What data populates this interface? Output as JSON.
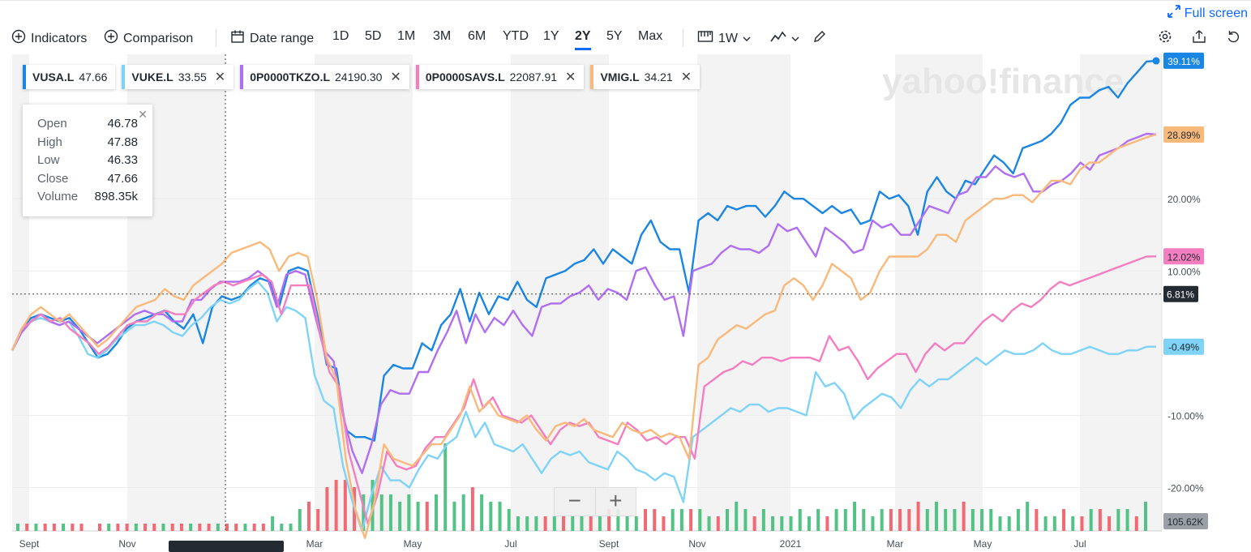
{
  "header": {
    "fullscreen_label": "Full screen"
  },
  "toolbar": {
    "indicators_label": "Indicators",
    "comparison_label": "Comparison",
    "date_range_label": "Date range",
    "ranges": [
      "1D",
      "5D",
      "1M",
      "3M",
      "6M",
      "YTD",
      "1Y",
      "2Y",
      "5Y",
      "Max"
    ],
    "selected_range": "2Y",
    "interval_label": "1W"
  },
  "legend": [
    {
      "symbol": "VUSA.L",
      "value": "47.66",
      "color": "#1a86e4",
      "closable": false
    },
    {
      "symbol": "VUKE.L",
      "value": "33.55",
      "color": "#7fd3f7",
      "closable": true
    },
    {
      "symbol": "0P0000TKZO.L",
      "value": "24190.30",
      "color": "#b06ef2",
      "closable": true
    },
    {
      "symbol": "0P0000SAVS.L",
      "value": "22087.91",
      "color": "#f47ec0",
      "closable": true
    },
    {
      "symbol": "VMIG.L",
      "value": "34.21",
      "color": "#f9b97a",
      "closable": true
    }
  ],
  "tooltip": {
    "rows": [
      {
        "label": "Open",
        "value": "46.78"
      },
      {
        "label": "High",
        "value": "47.88"
      },
      {
        "label": "Low",
        "value": "46.33"
      },
      {
        "label": "Close",
        "value": "47.66"
      },
      {
        "label": "Volume",
        "value": "898.35k"
      }
    ]
  },
  "watermark": "yahoo!finance",
  "chart_data": {
    "type": "line",
    "y_unit": "%",
    "ylim": [
      -26,
      40
    ],
    "y_ticks": [
      20,
      10,
      -10,
      -20
    ],
    "y_tick_labels": [
      "20.00%",
      "10.00%",
      "-10.00%",
      "-20.00%"
    ],
    "x_tick_labels": [
      "Sept",
      "Nov",
      "Mar",
      "May",
      "Jul",
      "Sept",
      "Nov",
      "2021",
      "Mar",
      "May",
      "Jul"
    ],
    "crosshair_y_label": "6.81%",
    "volume_label": "105.62K",
    "end_labels": [
      {
        "text": "39.11%",
        "color": "#1a86e4"
      },
      {
        "text": "28.89%",
        "color": "#f9b97a"
      },
      {
        "text": "12.02%",
        "color": "#f47ec0"
      },
      {
        "text": "-0.49%",
        "color": "#7fd3f7"
      }
    ],
    "series": [
      {
        "name": "VUSA.L",
        "color": "#1a86e4",
        "values": [
          -1,
          2,
          3.5,
          4,
          3.5,
          3,
          3.5,
          2,
          0,
          -2,
          -1.5,
          0,
          2,
          3,
          3.5,
          4,
          4.5,
          3,
          2,
          4,
          0,
          5,
          6.5,
          6,
          6.5,
          8,
          9,
          8.5,
          5,
          10,
          10.5,
          10,
          4,
          -3,
          -3.5,
          -12,
          -13,
          -13,
          -13.5,
          -4.5,
          -3,
          -3.5,
          -3.5,
          0,
          -1,
          2.5,
          4,
          7.5,
          3,
          7,
          4,
          6.5,
          6,
          8.5,
          6,
          5,
          9,
          9.5,
          10,
          11,
          11.5,
          13,
          11,
          13,
          12,
          11,
          15,
          17,
          14,
          13,
          13,
          7,
          17,
          18,
          17,
          19,
          18.5,
          19,
          19,
          17.5,
          19,
          21,
          20,
          20,
          19,
          18,
          19,
          18,
          18.5,
          16.5,
          17,
          21,
          20,
          20.5,
          19,
          15,
          21,
          23,
          21,
          20,
          22.5,
          22,
          24,
          26,
          25,
          23.5,
          27,
          27.5,
          28,
          29,
          30.5,
          33,
          34,
          34,
          35,
          35.5,
          34,
          36,
          37.5,
          39,
          39.1
        ]
      },
      {
        "name": "VUKE.L",
        "color": "#7fd3f7",
        "values": [
          -1,
          1.5,
          3,
          3.5,
          3,
          2.5,
          3,
          1,
          -1.5,
          -2,
          -1,
          0.5,
          1.5,
          2.5,
          2.5,
          3,
          2.5,
          1.5,
          1,
          2.5,
          3.5,
          5,
          6,
          5.5,
          6,
          7.5,
          8.5,
          7,
          3,
          5,
          4.5,
          3.5,
          -4.5,
          -8,
          -9,
          -17,
          -22,
          -26,
          -21,
          -17,
          -19,
          -19,
          -20,
          -17.5,
          -15.5,
          -16,
          -14,
          -13,
          -9.5,
          -13,
          -11,
          -14,
          -14.5,
          -15,
          -14,
          -16,
          -18,
          -16,
          -15,
          -15.5,
          -15,
          -16.5,
          -17,
          -17.5,
          -15,
          -16,
          -17.5,
          -18,
          -19,
          -18,
          -18.5,
          -22,
          -13,
          -12,
          -11,
          -10,
          -9,
          -9.5,
          -8.5,
          -8.5,
          -9.5,
          -9,
          -9,
          -9.5,
          -10,
          -4,
          -6,
          -5.5,
          -7,
          -10.5,
          -9,
          -8,
          -7,
          -7.5,
          -9,
          -6.5,
          -5,
          -6,
          -5,
          -5,
          -4,
          -3,
          -2,
          -3,
          -2,
          -1,
          -1.5,
          -1.5,
          -1,
          0,
          -1,
          -1.5,
          -1.5,
          -1,
          -0.5,
          -1,
          -1.5,
          -1.5,
          -1,
          -1,
          -0.5,
          -0.49
        ]
      },
      {
        "name": "0P0000TKZO.L",
        "color": "#b06ef2",
        "values": [
          -1,
          1.5,
          3,
          4,
          3,
          2.5,
          3,
          2,
          1,
          0,
          1,
          2,
          3,
          4,
          4.5,
          4,
          4,
          3,
          3,
          6,
          6,
          7.5,
          8.5,
          8.5,
          8.5,
          9,
          10,
          9,
          5,
          9.5,
          10,
          9.5,
          4,
          -1,
          -2.5,
          -10,
          -15,
          -18,
          -14,
          -8.5,
          -6.5,
          -7,
          -7,
          -4,
          -4,
          -1,
          1.5,
          4.5,
          0,
          4,
          1.5,
          3.5,
          2.5,
          4.5,
          2.5,
          1,
          5,
          5.5,
          5.5,
          6.5,
          7,
          8,
          6,
          7.5,
          7,
          6,
          10,
          10.5,
          8,
          6,
          6.5,
          1,
          10,
          10.5,
          11,
          12.5,
          13.5,
          13,
          13,
          12.5,
          13.5,
          16.5,
          15.5,
          16,
          14,
          12,
          16,
          15,
          14,
          12.5,
          13,
          17,
          16,
          16.5,
          15,
          15,
          17,
          19,
          18.5,
          18,
          20.5,
          21,
          23,
          23,
          24.5,
          23.5,
          23,
          23.5,
          21,
          21,
          22,
          22.5,
          23.5,
          25,
          24,
          26,
          26.5,
          27,
          28,
          28.5,
          29,
          28.89
        ]
      },
      {
        "name": "0P0000SAVS.L",
        "color": "#f47ec0",
        "values": [
          -1,
          2,
          3,
          4,
          3,
          3.5,
          2,
          1,
          0,
          -1.5,
          -0.5,
          1,
          2.5,
          3,
          3,
          4,
          4.5,
          4,
          4,
          6,
          7,
          8,
          8.5,
          8,
          8.5,
          9,
          9.5,
          8.5,
          4,
          8,
          8,
          8,
          1.5,
          -4,
          -6,
          -15,
          -20,
          -25,
          -21,
          -15,
          -17,
          -17.5,
          -17,
          -14.5,
          -13,
          -13,
          -11,
          -9,
          -5,
          -9,
          -7.5,
          -10,
          -10.5,
          -11,
          -10,
          -12,
          -14,
          -12,
          -11,
          -11.5,
          -11,
          -13,
          -13.5,
          -14,
          -11,
          -12,
          -13.5,
          -13,
          -14,
          -13,
          -13,
          -16,
          -6,
          -5,
          -4,
          -3.5,
          -2.5,
          -3,
          -2,
          -2,
          -2.5,
          -2,
          -2,
          -2,
          -2.5,
          1,
          -1,
          -0.5,
          -2.5,
          -5,
          -3.5,
          -2.5,
          -1.5,
          -1.5,
          -4,
          -1.5,
          0,
          -1,
          0,
          0,
          1.5,
          3,
          4,
          3,
          4.5,
          5.5,
          5,
          6,
          7.5,
          8.5,
          8,
          8.5,
          9,
          9.5,
          10,
          10.5,
          11,
          11.5,
          12,
          12.02
        ]
      },
      {
        "name": "VMIG.L",
        "color": "#f9b97a",
        "values": [
          -1,
          2,
          4,
          5,
          4,
          3,
          4,
          2.5,
          1,
          -0.5,
          0.5,
          2,
          3.5,
          5,
          5.5,
          6,
          7.5,
          6.5,
          6,
          8,
          9,
          10,
          11,
          12.5,
          13,
          13.5,
          14,
          13,
          10,
          12,
          12.5,
          12,
          6,
          -2,
          -5,
          -16,
          -23,
          -27,
          -22,
          -14,
          -16,
          -16.5,
          -17,
          -15.5,
          -14,
          -14,
          -12,
          -10,
          -6,
          -9.5,
          -8,
          -10,
          -10.5,
          -11,
          -10,
          -12,
          -13.5,
          -11.5,
          -11,
          -11.5,
          -10.5,
          -12,
          -12.5,
          -13,
          -11,
          -12,
          -12.5,
          -12,
          -13,
          -12.5,
          -13,
          -16,
          -3,
          -2,
          0.5,
          1.5,
          2.5,
          2,
          3,
          4,
          4.5,
          8,
          9,
          8,
          6,
          8,
          11,
          10,
          9,
          6,
          7,
          10,
          12,
          12,
          12,
          12,
          13,
          15,
          15,
          14,
          17,
          18,
          19,
          20,
          20,
          20.5,
          20.5,
          19.5,
          21,
          22.5,
          22.5,
          22,
          24,
          25,
          25,
          26,
          27,
          27.5,
          28,
          28.5,
          28.89
        ]
      }
    ],
    "volume": [
      [
        1,
        1
      ],
      [
        1,
        0
      ],
      [
        1,
        1
      ],
      [
        1,
        0
      ],
      [
        1,
        0
      ],
      [
        1,
        1
      ],
      [
        1,
        0
      ],
      [
        1,
        0
      ],
      [
        0,
        0
      ],
      [
        1,
        0
      ],
      [
        1,
        1
      ],
      [
        1,
        0
      ],
      [
        1,
        0
      ],
      [
        1,
        1
      ],
      [
        1,
        0
      ],
      [
        1,
        0
      ],
      [
        1,
        1
      ],
      [
        1,
        0
      ],
      [
        1,
        0
      ],
      [
        1,
        1
      ],
      [
        1,
        0
      ],
      [
        1,
        0
      ],
      [
        1,
        1
      ],
      [
        1,
        0
      ],
      [
        1,
        0
      ],
      [
        1,
        1
      ],
      [
        1,
        0
      ],
      [
        1,
        0
      ],
      [
        2,
        1
      ],
      [
        1,
        1
      ],
      [
        1,
        1
      ],
      [
        3,
        1
      ],
      [
        4,
        0
      ],
      [
        3,
        0
      ],
      [
        6,
        0
      ],
      [
        7,
        0
      ],
      [
        7,
        0
      ],
      [
        6,
        0
      ],
      [
        5,
        1
      ],
      [
        7,
        1
      ],
      [
        5,
        1
      ],
      [
        5,
        1
      ],
      [
        4,
        1
      ],
      [
        5,
        1
      ],
      [
        4,
        1
      ],
      [
        4,
        0
      ],
      [
        5,
        1
      ],
      [
        12,
        1
      ],
      [
        4,
        1
      ],
      [
        5,
        1
      ],
      [
        6,
        0
      ],
      [
        5,
        1
      ],
      [
        4,
        1
      ],
      [
        4,
        1
      ],
      [
        3,
        1
      ],
      [
        2,
        1
      ],
      [
        2,
        1
      ],
      [
        2,
        1
      ],
      [
        2,
        0
      ],
      [
        2,
        1
      ],
      [
        2,
        0
      ],
      [
        2,
        1
      ],
      [
        2,
        1
      ],
      [
        2,
        0
      ],
      [
        2,
        1
      ],
      [
        3,
        0
      ],
      [
        3,
        1
      ],
      [
        2,
        1
      ],
      [
        2,
        1
      ],
      [
        3,
        0
      ],
      [
        3,
        0
      ],
      [
        2,
        0
      ],
      [
        3,
        1
      ],
      [
        3,
        1
      ],
      [
        3,
        0
      ],
      [
        3,
        1
      ],
      [
        2,
        1
      ],
      [
        2,
        0
      ],
      [
        3,
        1
      ],
      [
        4,
        1
      ],
      [
        3,
        1
      ],
      [
        2,
        0
      ],
      [
        3,
        1
      ],
      [
        2,
        1
      ],
      [
        2,
        1
      ],
      [
        2,
        1
      ],
      [
        3,
        1
      ],
      [
        2,
        1
      ],
      [
        3,
        1
      ],
      [
        2,
        0
      ],
      [
        3,
        1
      ],
      [
        3,
        1
      ],
      [
        4,
        1
      ],
      [
        3,
        1
      ],
      [
        2,
        1
      ],
      [
        3,
        1
      ],
      [
        3,
        0
      ],
      [
        3,
        0
      ],
      [
        3,
        0
      ],
      [
        4,
        0
      ],
      [
        3,
        1
      ],
      [
        4,
        1
      ],
      [
        3,
        1
      ],
      [
        3,
        1
      ],
      [
        4,
        0
      ],
      [
        3,
        1
      ],
      [
        3,
        1
      ],
      [
        3,
        1
      ],
      [
        2,
        1
      ],
      [
        2,
        1
      ],
      [
        3,
        1
      ],
      [
        4,
        1
      ],
      [
        3,
        0
      ],
      [
        2,
        1
      ],
      [
        2,
        1
      ],
      [
        3,
        0
      ],
      [
        2,
        1
      ],
      [
        2,
        0
      ],
      [
        3,
        1
      ],
      [
        3,
        0
      ],
      [
        2,
        0
      ],
      [
        3,
        1
      ],
      [
        3,
        1
      ],
      [
        2,
        0
      ],
      [
        4,
        1
      ]
    ]
  }
}
